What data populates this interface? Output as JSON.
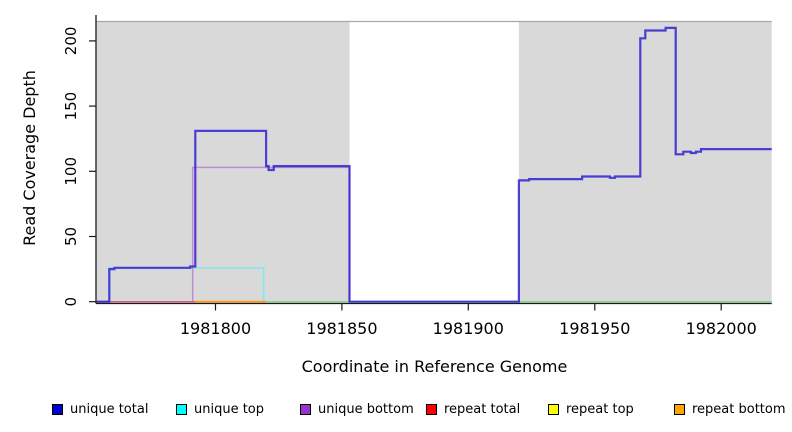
{
  "chart_data": {
    "type": "line",
    "step": true,
    "title": "",
    "xlabel": "Coordinate in Reference Genome",
    "ylabel": "Read Coverage Depth",
    "xlim": [
      1981753,
      1982020
    ],
    "ylim": [
      0,
      217
    ],
    "grid": false,
    "xticks": [
      1981800,
      1981850,
      1981900,
      1981950,
      1982000
    ],
    "xtick_labels": [
      "1981800",
      "1981850",
      "1981900",
      "1981950",
      "1982000"
    ],
    "yticks": [
      0,
      50,
      100,
      150,
      200
    ],
    "ytick_labels": [
      "0",
      "50",
      "100",
      "150",
      "200"
    ],
    "plot_bg_color": "#ffffff",
    "region_fill_color": "#d9d9d9",
    "gap_cap_line_color": "#a9a9a9",
    "axis_color": "#1a1a1a",
    "background_regions": [
      {
        "name": "shaded-region-left",
        "x0": 1981753,
        "x1": 1981853
      },
      {
        "name": "shaded-region-right",
        "x0": 1981920,
        "x1": 1982020
      }
    ],
    "white_gap": {
      "x0": 1981853,
      "x1": 1981920
    },
    "series": [
      {
        "name": "repeat top",
        "color": "#ffff00",
        "width": 1.4,
        "visible": false,
        "points": [
          [
            1981753,
            0
          ],
          [
            1982020,
            0
          ]
        ]
      },
      {
        "name": "unique top",
        "color": "#84e7ee",
        "width": 1.7,
        "points": [
          [
            1981753,
            0
          ],
          [
            1981758,
            26
          ],
          [
            1981819,
            0
          ],
          [
            1982020,
            0
          ]
        ]
      },
      {
        "name": "unique bottom",
        "color": "#bc8ed3",
        "width": 1.5,
        "points": [
          [
            1981753,
            0
          ],
          [
            1981791,
            103
          ],
          [
            1981853,
            0
          ],
          [
            1982020,
            0
          ]
        ]
      },
      {
        "name": "repeat total",
        "color": "#d65b78",
        "width": 1.4,
        "points": [
          [
            1981753,
            0
          ],
          [
            1981792,
            0
          ]
        ]
      },
      {
        "name": "repeat bottom",
        "color": "#ff9b1e",
        "width": 1.8,
        "points": [
          [
            1981792,
            0
          ],
          [
            1981820,
            0
          ]
        ]
      },
      {
        "name": "baseline unlabeled",
        "color": "#8ed48e",
        "width": 1.5,
        "points": [
          [
            1981820,
            0
          ],
          [
            1982020,
            0
          ]
        ]
      },
      {
        "name": "unique total",
        "color": "rgba(47,33,210,0.85)",
        "width": 2.2,
        "points": [
          [
            1981753,
            0
          ],
          [
            1981758,
            25
          ],
          [
            1981760,
            26
          ],
          [
            1981790,
            27
          ],
          [
            1981792,
            131
          ],
          [
            1981820,
            104
          ],
          [
            1981821,
            101
          ],
          [
            1981823,
            104
          ],
          [
            1981853,
            0
          ],
          [
            1981920,
            93
          ],
          [
            1981924,
            94
          ],
          [
            1981945,
            96
          ],
          [
            1981956,
            95
          ],
          [
            1981958,
            96
          ],
          [
            1981968,
            202
          ],
          [
            1981970,
            208
          ],
          [
            1981978,
            210
          ],
          [
            1981982,
            113
          ],
          [
            1981985,
            115
          ],
          [
            1981988,
            114
          ],
          [
            1981990,
            115
          ],
          [
            1981992,
            117
          ],
          [
            1982020,
            117
          ]
        ]
      }
    ],
    "legend": [
      {
        "label": "unique total",
        "color": "#0000cd"
      },
      {
        "label": "unique top",
        "color": "#00ffff"
      },
      {
        "label": "unique bottom",
        "color": "#9932cc"
      },
      {
        "label": "repeat total",
        "color": "#ff0000"
      },
      {
        "label": "repeat top",
        "color": "#ffff00"
      },
      {
        "label": "repeat bottom",
        "color": "#ffa500"
      }
    ],
    "legend_position": "bottom"
  }
}
